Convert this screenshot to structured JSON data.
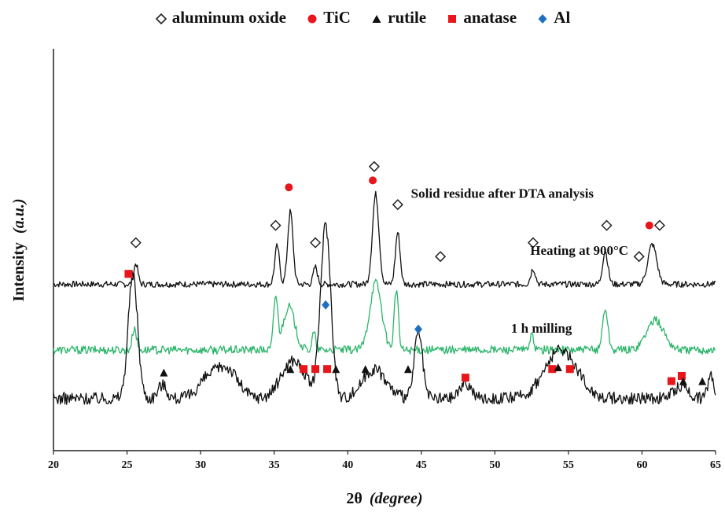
{
  "legend": [
    {
      "label": "aluminum oxide",
      "marker": "diamond-open",
      "color": "#222222"
    },
    {
      "label": "TiC",
      "marker": "circle",
      "color": "#e8161b"
    },
    {
      "label": "rutile",
      "marker": "triangle",
      "color": "#111111"
    },
    {
      "label": "anatase",
      "marker": "square",
      "color": "#e8161b"
    },
    {
      "label": "Al",
      "marker": "diamond",
      "color": "#1f6fc2"
    }
  ],
  "chart_data": {
    "type": "line",
    "xlabel_main": "2θ",
    "xlabel_unit": "(degree)",
    "ylabel_main": "Intensity",
    "ylabel_unit": "(a.u.)",
    "xlim": [
      20,
      65
    ],
    "xticks": [
      "20",
      "25",
      "30",
      "35",
      "40",
      "45",
      "50",
      "55",
      "60",
      "65"
    ],
    "y_ticks_shown": false,
    "series": [
      {
        "name": "Solid residue after DTA analysis",
        "color": "#111111",
        "baseline": 0.78,
        "noise": 0.006,
        "peaks": [
          {
            "x": 25.6,
            "h": 0.12,
            "w": 0.14
          },
          {
            "x": 35.2,
            "h": 0.22,
            "w": 0.16
          },
          {
            "x": 36.1,
            "h": 0.42,
            "w": 0.18
          },
          {
            "x": 37.8,
            "h": 0.1,
            "w": 0.14
          },
          {
            "x": 41.9,
            "h": 0.52,
            "w": 0.22
          },
          {
            "x": 43.4,
            "h": 0.3,
            "w": 0.16
          },
          {
            "x": 52.6,
            "h": 0.09,
            "w": 0.16
          },
          {
            "x": 57.5,
            "h": 0.19,
            "w": 0.18
          },
          {
            "x": 60.7,
            "h": 0.23,
            "w": 0.3
          }
        ]
      },
      {
        "name": "Heating at 900°C",
        "color": "#2bb56a",
        "baseline": 0.4,
        "noise": 0.008,
        "peaks": [
          {
            "x": 25.5,
            "h": 0.13,
            "w": 0.14
          },
          {
            "x": 35.1,
            "h": 0.3,
            "w": 0.14
          },
          {
            "x": 36.0,
            "h": 0.25,
            "w": 0.4
          },
          {
            "x": 37.7,
            "h": 0.1,
            "w": 0.12
          },
          {
            "x": 41.9,
            "h": 0.39,
            "w": 0.4
          },
          {
            "x": 43.3,
            "h": 0.35,
            "w": 0.14
          },
          {
            "x": 52.5,
            "h": 0.08,
            "w": 0.14
          },
          {
            "x": 57.5,
            "h": 0.24,
            "w": 0.18
          },
          {
            "x": 60.9,
            "h": 0.17,
            "w": 0.6
          }
        ]
      },
      {
        "name": "1 h milling",
        "color": "#111111",
        "baseline": 0.12,
        "noise": 0.012,
        "peaks": [
          {
            "x": 25.4,
            "h": 0.72,
            "w": 0.32
          },
          {
            "x": 27.4,
            "h": 0.08,
            "w": 0.3
          },
          {
            "x": 30.3,
            "h": 0.08,
            "w": 0.6
          },
          {
            "x": 31.7,
            "h": 0.18,
            "w": 0.8
          },
          {
            "x": 36.3,
            "h": 0.22,
            "w": 0.8
          },
          {
            "x": 38.5,
            "h": 1.0,
            "w": 0.35
          },
          {
            "x": 41.8,
            "h": 0.17,
            "w": 0.8
          },
          {
            "x": 44.8,
            "h": 0.38,
            "w": 0.28
          },
          {
            "x": 48.0,
            "h": 0.09,
            "w": 0.4
          },
          {
            "x": 54.5,
            "h": 0.28,
            "w": 1.1
          },
          {
            "x": 62.7,
            "h": 0.07,
            "w": 0.5
          },
          {
            "x": 64.7,
            "h": 0.14,
            "w": 0.2
          }
        ]
      }
    ],
    "annotations": [
      {
        "text": "Solid residue after DTA analysis",
        "x": 44.3,
        "y": 1.28
      },
      {
        "text": "Heating at 900°C",
        "x": 52.4,
        "y": 0.95
      },
      {
        "text": "1 h milling",
        "x": 51.1,
        "y": 0.5
      }
    ],
    "markers": [
      {
        "phase": "aluminum oxide",
        "x": 25.6,
        "y": 1.02
      },
      {
        "phase": "aluminum oxide",
        "x": 35.1,
        "y": 1.12
      },
      {
        "phase": "aluminum oxide",
        "x": 37.8,
        "y": 1.02
      },
      {
        "phase": "aluminum oxide",
        "x": 41.8,
        "y": 1.46
      },
      {
        "phase": "aluminum oxide",
        "x": 43.4,
        "y": 1.24
      },
      {
        "phase": "aluminum oxide",
        "x": 46.3,
        "y": 0.94
      },
      {
        "phase": "aluminum oxide",
        "x": 52.6,
        "y": 1.02
      },
      {
        "phase": "aluminum oxide",
        "x": 57.6,
        "y": 1.12
      },
      {
        "phase": "aluminum oxide",
        "x": 59.8,
        "y": 0.94
      },
      {
        "phase": "aluminum oxide",
        "x": 61.2,
        "y": 1.12
      },
      {
        "phase": "TiC",
        "x": 36.0,
        "y": 1.34
      },
      {
        "phase": "TiC",
        "x": 41.7,
        "y": 1.38
      },
      {
        "phase": "TiC",
        "x": 60.5,
        "y": 1.12
      },
      {
        "phase": "Al",
        "x": 38.5,
        "y": 0.66
      },
      {
        "phase": "Al",
        "x": 44.8,
        "y": 0.52
      },
      {
        "phase": "anatase",
        "x": 25.1,
        "y": 0.84
      },
      {
        "phase": "anatase",
        "x": 37.0,
        "y": 0.29
      },
      {
        "phase": "anatase",
        "x": 37.8,
        "y": 0.29
      },
      {
        "phase": "anatase",
        "x": 38.6,
        "y": 0.29
      },
      {
        "phase": "anatase",
        "x": 48.0,
        "y": 0.24
      },
      {
        "phase": "anatase",
        "x": 53.9,
        "y": 0.29
      },
      {
        "phase": "anatase",
        "x": 55.1,
        "y": 0.29
      },
      {
        "phase": "anatase",
        "x": 62.0,
        "y": 0.22
      },
      {
        "phase": "anatase",
        "x": 62.7,
        "y": 0.25
      },
      {
        "phase": "rutile",
        "x": 27.5,
        "y": 0.27
      },
      {
        "phase": "rutile",
        "x": 36.1,
        "y": 0.29
      },
      {
        "phase": "rutile",
        "x": 39.2,
        "y": 0.29
      },
      {
        "phase": "rutile",
        "x": 41.2,
        "y": 0.29
      },
      {
        "phase": "rutile",
        "x": 44.1,
        "y": 0.29
      },
      {
        "phase": "rutile",
        "x": 54.3,
        "y": 0.3
      },
      {
        "phase": "rutile",
        "x": 62.8,
        "y": 0.22
      },
      {
        "phase": "rutile",
        "x": 64.1,
        "y": 0.22
      }
    ]
  }
}
